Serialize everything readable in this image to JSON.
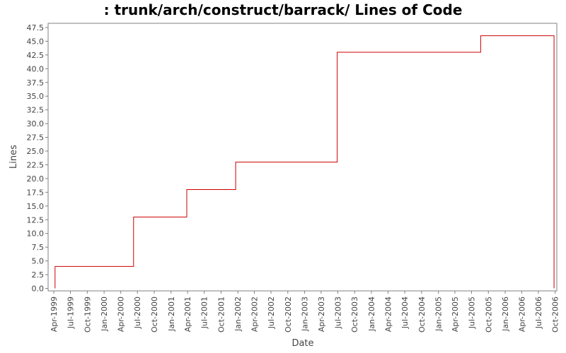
{
  "chart_data": {
    "type": "line",
    "step": true,
    "title": ": trunk/arch/construct/barrack/ Lines of Code",
    "xlabel": "Date",
    "ylabel": "Lines",
    "ylim": [
      0,
      48.5
    ],
    "yticks": [
      0.0,
      2.5,
      5.0,
      7.5,
      10.0,
      12.5,
      15.0,
      17.5,
      20.0,
      22.5,
      25.0,
      27.5,
      30.0,
      32.5,
      35.0,
      37.5,
      40.0,
      42.5,
      45.0,
      47.5
    ],
    "ytick_labels": [
      "0.0",
      "2.5",
      "5.0",
      "7.5",
      "10.0",
      "12.5",
      "15.0",
      "17.5",
      "20.0",
      "22.5",
      "25.0",
      "27.5",
      "30.0",
      "32.5",
      "35.0",
      "37.5",
      "40.0",
      "42.5",
      "45.0",
      "47.5"
    ],
    "xlim": [
      "1999-03-01",
      "2006-10-10"
    ],
    "xticks": [
      "1999-04-01",
      "1999-07-01",
      "1999-10-01",
      "2000-01-01",
      "2000-04-01",
      "2000-07-01",
      "2000-10-01",
      "2001-01-01",
      "2001-04-01",
      "2001-07-01",
      "2001-10-01",
      "2002-01-01",
      "2002-04-01",
      "2002-07-01",
      "2002-10-01",
      "2003-01-01",
      "2003-04-01",
      "2003-07-01",
      "2003-10-01",
      "2004-01-01",
      "2004-04-01",
      "2004-07-01",
      "2004-10-01",
      "2005-01-01",
      "2005-04-01",
      "2005-07-01",
      "2005-10-01",
      "2006-01-01",
      "2006-04-01",
      "2006-07-01",
      "2006-10-01"
    ],
    "xtick_labels": [
      "Apr-1999",
      "Jul-1999",
      "Oct-1999",
      "Jan-2000",
      "Apr-2000",
      "Jul-2000",
      "Oct-2000",
      "Jan-2001",
      "Apr-2001",
      "Jul-2001",
      "Oct-2001",
      "Jan-2002",
      "Apr-2002",
      "Jul-2002",
      "Oct-2002",
      "Jan-2003",
      "Apr-2003",
      "Jul-2003",
      "Oct-2003",
      "Jan-2004",
      "Apr-2004",
      "Jul-2004",
      "Oct-2004",
      "Jan-2005",
      "Apr-2005",
      "Jul-2005",
      "Oct-2005",
      "Jan-2006",
      "Apr-2006",
      "Jul-2006",
      "Oct-2006"
    ],
    "grid": false,
    "series": [
      {
        "color": "#cc0000",
        "points": [
          {
            "x": "1999-04-08",
            "y": 0
          },
          {
            "x": "1999-04-08",
            "y": 4
          },
          {
            "x": "2000-06-10",
            "y": 4
          },
          {
            "x": "2000-06-10",
            "y": 13
          },
          {
            "x": "2001-03-28",
            "y": 13
          },
          {
            "x": "2001-03-28",
            "y": 18
          },
          {
            "x": "2001-12-20",
            "y": 18
          },
          {
            "x": "2001-12-20",
            "y": 23
          },
          {
            "x": "2003-06-28",
            "y": 23
          },
          {
            "x": "2003-06-28",
            "y": 43
          },
          {
            "x": "2005-08-20",
            "y": 43
          },
          {
            "x": "2005-08-20",
            "y": 46
          },
          {
            "x": "2006-09-25",
            "y": 46
          },
          {
            "x": "2006-09-25",
            "y": 0
          }
        ]
      }
    ]
  }
}
